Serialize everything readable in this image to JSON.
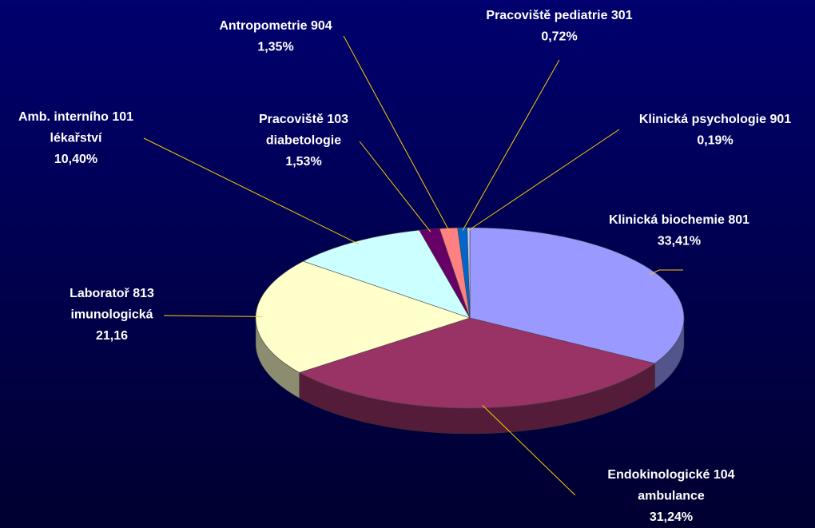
{
  "chart_data": {
    "type": "pie3d",
    "categories": [
      [
        "Klinická biochemie 801"
      ],
      [
        "Endokinologické 104",
        "ambulance"
      ],
      [
        "Laboratoř 813",
        "imunologická"
      ],
      [
        "Amb. interního 101",
        "lékařství"
      ],
      [
        "Pracoviště 103",
        "diabetologie"
      ],
      [
        "Antropometrie 904"
      ],
      [
        "Pracoviště pediatrie 301"
      ],
      [
        "Klinická psychologie 901"
      ]
    ],
    "values": [
      33.41,
      31.24,
      21.16,
      10.4,
      1.53,
      1.35,
      0.72,
      0.19
    ],
    "value_labels": [
      "33,41%",
      "31,24%",
      "21,16",
      "10,40%",
      "1,53%",
      "1,35%",
      "0,72%",
      "0,19%"
    ],
    "colors": [
      "#9999ff",
      "#993366",
      "#ffffcc",
      "#ccffff",
      "#660066",
      "#ff8080",
      "#0066cc",
      "#ccccff"
    ]
  }
}
